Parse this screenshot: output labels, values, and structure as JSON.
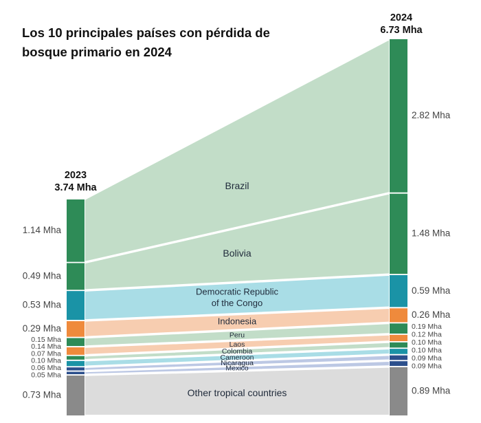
{
  "chart_data": {
    "type": "sankey",
    "title_lines": [
      "Los 10 principales países con pérdida de",
      "bosque primario en  2024"
    ],
    "columns": [
      {
        "year": "2023",
        "total": "3.74 Mha"
      },
      {
        "year": "2024",
        "total": "6.73 Mha"
      }
    ],
    "unit": "Mha",
    "flows": [
      {
        "country": "Brazil",
        "value_2023": 1.14,
        "value_2024": 2.82,
        "label_2023": "1.14 Mha",
        "label_2024": "2.82 Mha",
        "color": "#2e8b57",
        "band_color": "#c2ddc8"
      },
      {
        "country": "Bolivia",
        "value_2023": 0.49,
        "value_2024": 1.48,
        "label_2023": "0.49 Mha",
        "label_2024": "1.48 Mha",
        "color": "#2e8b57",
        "band_color": "#c2ddc8"
      },
      {
        "country": "Democratic Republic of the Congo",
        "label_lines": [
          "Democratic Republic",
          "of the Congo"
        ],
        "value_2023": 0.53,
        "value_2024": 0.59,
        "label_2023": "0.53 Mha",
        "label_2024": "0.59 Mha",
        "color": "#1a93a6",
        "band_color": "#a9dde6"
      },
      {
        "country": "Indonesia",
        "value_2023": 0.29,
        "value_2024": 0.26,
        "label_2023": "0.29 Mha",
        "label_2024": "0.26 Mha",
        "color": "#ef8a3c",
        "band_color": "#f7cdb0"
      },
      {
        "country": "Peru",
        "value_2023": 0.15,
        "value_2024": 0.19,
        "label_2023": "0.15 Mha",
        "label_2024": "0.19 Mha",
        "color": "#2e8b57",
        "band_color": "#c2ddc8"
      },
      {
        "country": "Laos",
        "value_2023": 0.14,
        "value_2024": 0.12,
        "label_2023": "0.14 Mha",
        "label_2024": "0.12 Mha",
        "color": "#ef8a3c",
        "band_color": "#f7cdb0"
      },
      {
        "country": "Colombia",
        "value_2023": 0.07,
        "value_2024": 0.1,
        "label_2023": "0.07 Mha",
        "label_2024": "0.10 Mha",
        "color": "#2e8b57",
        "band_color": "#c2ddc8"
      },
      {
        "country": "Cameroon",
        "value_2023": 0.1,
        "value_2024": 0.1,
        "label_2023": "0.10 Mha",
        "label_2024": "0.10 Mha",
        "color": "#1a93a6",
        "band_color": "#a9dde6"
      },
      {
        "country": "Nicaragua",
        "value_2023": 0.06,
        "value_2024": 0.09,
        "label_2023": "0.06 Mha",
        "label_2024": "0.09 Mha",
        "color": "#2c4f8c",
        "band_color": "#bcc8e4"
      },
      {
        "country": "Mexico",
        "value_2023": 0.05,
        "value_2024": 0.09,
        "label_2023": "0.05 Mha",
        "label_2024": "0.09 Mha",
        "color": "#2c4f8c",
        "band_color": "#bcc8e4"
      },
      {
        "country": "Other tropical countries",
        "value_2023": 0.73,
        "value_2024": 0.89,
        "label_2023": "0.73 Mha",
        "label_2024": "0.89 Mha",
        "color": "#8a8a8a",
        "band_color": "#dcdcdc"
      }
    ]
  }
}
